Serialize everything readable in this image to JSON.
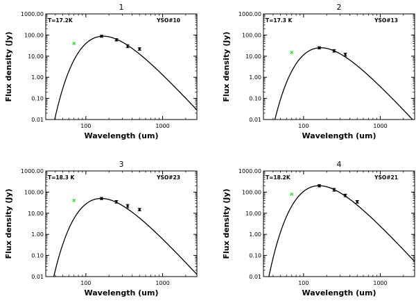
{
  "chart_data": [
    {
      "type": "scatter",
      "title": "1",
      "xlabel": "Wavelength  (um)",
      "ylabel": "Flux  density  (Jy)",
      "xscale": "log",
      "yscale": "log",
      "xlim": [
        30,
        2800
      ],
      "ylim": [
        0.01,
        1000
      ],
      "x_ticks": [
        100,
        1000
      ],
      "x_tick_labels": [
        "100",
        "1000"
      ],
      "y_ticks": [
        0.01,
        0.1,
        1,
        10,
        100,
        1000
      ],
      "y_tick_labels": [
        "0.01",
        "0.10",
        "1.00",
        "10.00",
        "100.00",
        "1000.00"
      ],
      "temperature_label": "T=17.2K",
      "source_label": "YSO#10",
      "model_curve": {
        "name": "greybody fit",
        "T_K": 17.2,
        "peak_flux_jy": 88
      },
      "points": [
        {
          "x": 160,
          "y": 88,
          "yerr": 10
        },
        {
          "x": 250,
          "y": 60,
          "yerr": 8
        },
        {
          "x": 350,
          "y": 30,
          "yerr": 5
        },
        {
          "x": 500,
          "y": 22,
          "yerr": 3
        }
      ],
      "excluded_points": [
        {
          "x": 70,
          "y": 40
        }
      ],
      "colors": {
        "line": "#000000",
        "points": "#000000",
        "excluded": "#33dd33"
      }
    },
    {
      "type": "scatter",
      "title": "2",
      "xlabel": "Wavelength  (um)",
      "ylabel": "Flux  density  (Jy)",
      "xscale": "log",
      "yscale": "log",
      "xlim": [
        30,
        2800
      ],
      "ylim": [
        0.01,
        1000
      ],
      "x_ticks": [
        100,
        1000
      ],
      "x_tick_labels": [
        "100",
        "1000"
      ],
      "y_ticks": [
        0.01,
        0.1,
        1,
        10,
        100,
        1000
      ],
      "y_tick_labels": [
        "0.01",
        "0.10",
        "1.00",
        "10.00",
        "100.00",
        "1000.00"
      ],
      "temperature_label": "T=17.3 K",
      "source_label": "YSO#13",
      "model_curve": {
        "name": "greybody fit",
        "T_K": 17.3,
        "peak_flux_jy": 25
      },
      "points": [
        {
          "x": 160,
          "y": 25,
          "yerr": 3
        },
        {
          "x": 250,
          "y": 18,
          "yerr": 2.5
        },
        {
          "x": 350,
          "y": 12,
          "yerr": 2
        }
      ],
      "excluded_points": [
        {
          "x": 70,
          "y": 15
        }
      ],
      "colors": {
        "line": "#000000",
        "points": "#000000",
        "excluded": "#33dd33"
      }
    },
    {
      "type": "scatter",
      "title": "3",
      "xlabel": "Wavelength  (um)",
      "ylabel": "Flux  density  (Jy)",
      "xscale": "log",
      "yscale": "log",
      "xlim": [
        30,
        2800
      ],
      "ylim": [
        0.01,
        1000
      ],
      "x_ticks": [
        100,
        1000
      ],
      "x_tick_labels": [
        "100",
        "1000"
      ],
      "y_ticks": [
        0.01,
        0.1,
        1,
        10,
        100,
        1000
      ],
      "y_tick_labels": [
        "0.01",
        "0.10",
        "1.00",
        "10.00",
        "100.00",
        "1000.00"
      ],
      "temperature_label": "T=18.3 K",
      "source_label": "YSO#23",
      "model_curve": {
        "name": "greybody fit",
        "T_K": 18.3,
        "peak_flux_jy": 50
      },
      "points": [
        {
          "x": 160,
          "y": 50,
          "yerr": 6
        },
        {
          "x": 250,
          "y": 35,
          "yerr": 5
        },
        {
          "x": 350,
          "y": 22,
          "yerr": 4
        },
        {
          "x": 500,
          "y": 15,
          "yerr": 2
        }
      ],
      "excluded_points": [
        {
          "x": 70,
          "y": 40
        }
      ],
      "colors": {
        "line": "#000000",
        "points": "#000000",
        "excluded": "#33dd33"
      }
    },
    {
      "type": "scatter",
      "title": "4",
      "xlabel": "Wavelength  (um)",
      "ylabel": "Flux  density  (Jy)",
      "xscale": "log",
      "yscale": "log",
      "xlim": [
        30,
        2800
      ],
      "ylim": [
        0.01,
        1000
      ],
      "x_ticks": [
        100,
        1000
      ],
      "x_tick_labels": [
        "100",
        "1000"
      ],
      "y_ticks": [
        0.01,
        0.1,
        1,
        10,
        100,
        1000
      ],
      "y_tick_labels": [
        "0.01",
        "0.10",
        "1.00",
        "10.00",
        "100.00",
        "1000.00"
      ],
      "temperature_label": "T=18.2K",
      "source_label": "YSO#21",
      "model_curve": {
        "name": "greybody fit",
        "T_K": 18.2,
        "peak_flux_jy": 200
      },
      "points": [
        {
          "x": 160,
          "y": 200,
          "yerr": 25
        },
        {
          "x": 250,
          "y": 130,
          "yerr": 20
        },
        {
          "x": 350,
          "y": 70,
          "yerr": 10
        },
        {
          "x": 500,
          "y": 35,
          "yerr": 5
        }
      ],
      "excluded_points": [
        {
          "x": 70,
          "y": 80
        }
      ],
      "colors": {
        "line": "#000000",
        "points": "#000000",
        "excluded": "#33dd33"
      }
    }
  ]
}
